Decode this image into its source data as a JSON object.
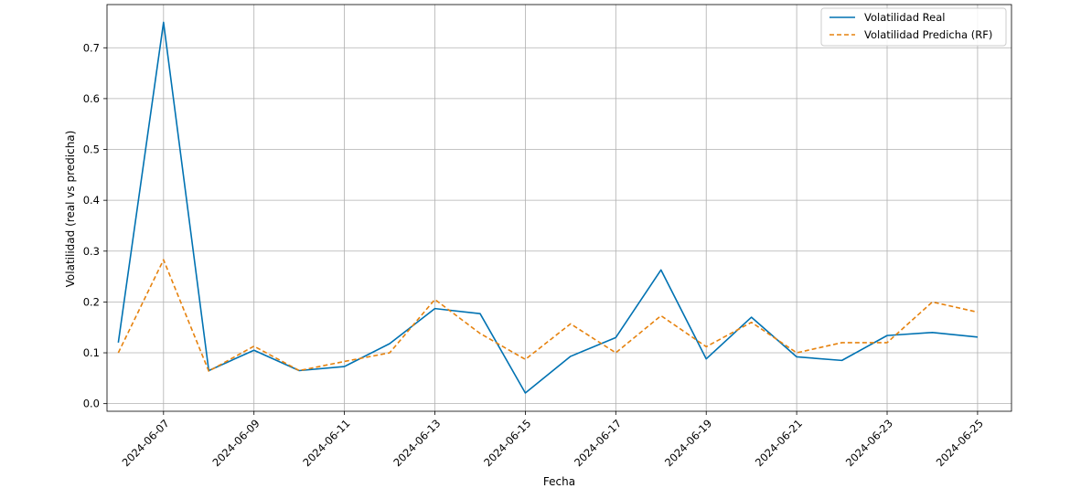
{
  "chart_data": {
    "type": "line",
    "xlabel": "Fecha",
    "ylabel": "Volatilidad (real vs predicha)",
    "x": [
      "2024-06-06",
      "2024-06-07",
      "2024-06-08",
      "2024-06-09",
      "2024-06-10",
      "2024-06-11",
      "2024-06-12",
      "2024-06-13",
      "2024-06-14",
      "2024-06-15",
      "2024-06-16",
      "2024-06-17",
      "2024-06-18",
      "2024-06-19",
      "2024-06-20",
      "2024-06-21",
      "2024-06-22",
      "2024-06-23",
      "2024-06-24",
      "2024-06-25"
    ],
    "xlim": [
      "2024-06-05T18:00",
      "2024-06-25T18:00"
    ],
    "xticks": [
      "2024-06-07",
      "2024-06-09",
      "2024-06-11",
      "2024-06-13",
      "2024-06-15",
      "2024-06-17",
      "2024-06-19",
      "2024-06-21",
      "2024-06-23",
      "2024-06-25"
    ],
    "ylim": [
      -0.015,
      0.785
    ],
    "yticks": [
      0.0,
      0.1,
      0.2,
      0.3,
      0.4,
      0.5,
      0.6,
      0.7
    ],
    "ytick_labels": [
      "0.0",
      "0.1",
      "0.2",
      "0.3",
      "0.4",
      "0.5",
      "0.6",
      "0.7"
    ],
    "grid": true,
    "legend_position": "top-right",
    "series": [
      {
        "name": "Volatilidad Real",
        "color": "#0072b2",
        "style": "solid",
        "values": [
          0.12,
          0.75,
          0.065,
          0.105,
          0.065,
          0.073,
          0.118,
          0.187,
          0.177,
          0.021,
          0.093,
          0.13,
          0.263,
          0.088,
          0.17,
          0.092,
          0.085,
          0.134,
          0.14,
          0.131
        ]
      },
      {
        "name": "Volatilidad Predicha (RF)",
        "color": "#e6820e",
        "style": "dashed",
        "values": [
          0.1,
          0.283,
          0.064,
          0.113,
          0.065,
          0.083,
          0.1,
          0.205,
          0.138,
          0.087,
          0.157,
          0.1,
          0.173,
          0.112,
          0.16,
          0.1,
          0.12,
          0.12,
          0.2,
          0.18
        ]
      }
    ]
  }
}
